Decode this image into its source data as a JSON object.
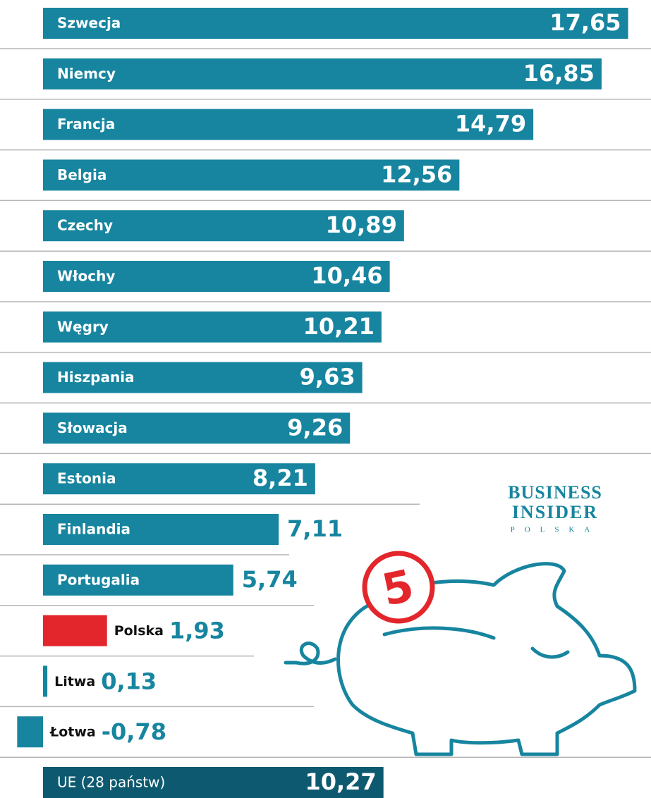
{
  "chart_data": {
    "type": "bar",
    "orientation": "horizontal",
    "categories": [
      "Szwecja",
      "Niemcy",
      "Francja",
      "Belgia",
      "Czechy",
      "Włochy",
      "Węgry",
      "Hiszpania",
      "Słowacja",
      "Estonia",
      "Finlandia",
      "Portugalia",
      "Polska",
      "Litwa",
      "Łotwa",
      "UE (28 państw)"
    ],
    "values": [
      17.65,
      16.85,
      14.79,
      12.56,
      10.89,
      10.46,
      10.21,
      9.63,
      9.26,
      8.21,
      7.11,
      5.74,
      1.93,
      0.13,
      -0.78,
      10.27
    ],
    "value_labels": [
      "17,65",
      "16,85",
      "14,79",
      "12,56",
      "10,89",
      "10,46",
      "10,21",
      "9,63",
      "9,26",
      "8,21",
      "7,11",
      "5,74",
      "1,93",
      "0,13",
      "-0,78",
      "10,27"
    ],
    "colors": [
      "#17859f",
      "#17859f",
      "#17859f",
      "#17859f",
      "#17859f",
      "#17859f",
      "#17859f",
      "#17859f",
      "#17859f",
      "#17859f",
      "#17859f",
      "#17859f",
      "#e3262b",
      "#17859f",
      "#17859f",
      "#0d5a70"
    ]
  },
  "logo": {
    "line1": "BUSINESS",
    "line2": "INSIDER",
    "line3": "POLSKA"
  },
  "badge": "5"
}
